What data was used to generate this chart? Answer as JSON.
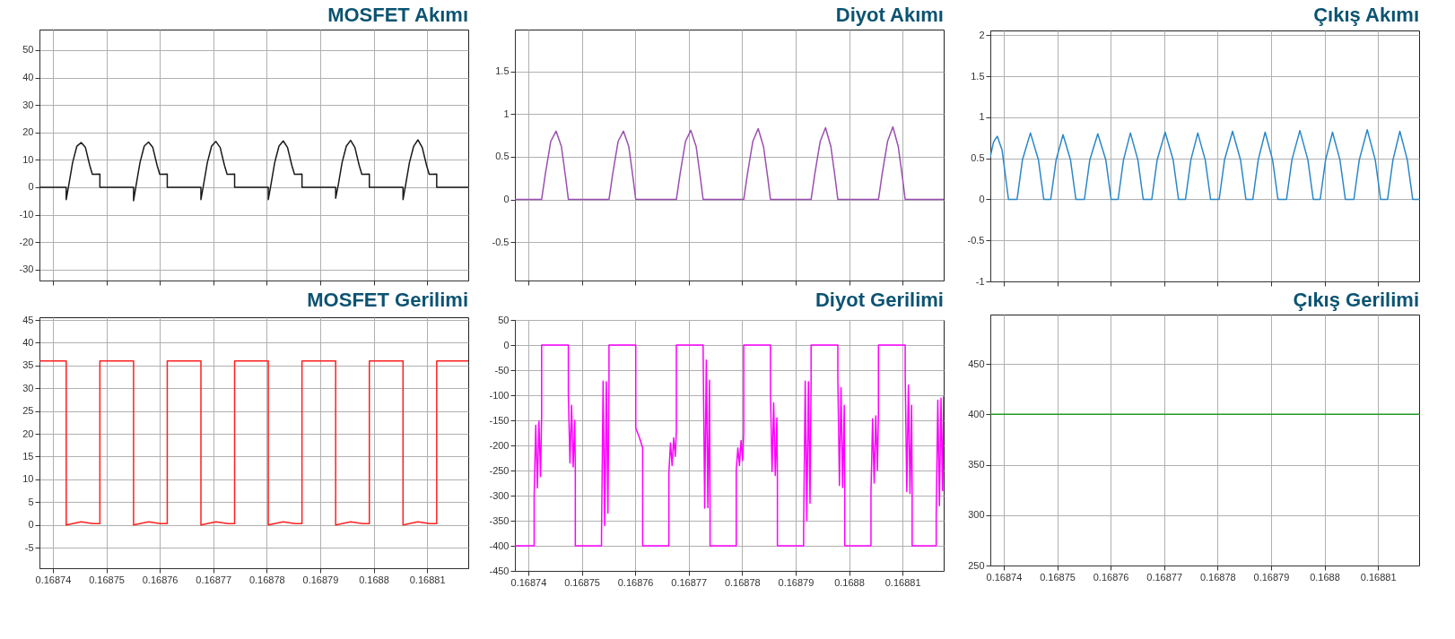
{
  "chart_data": [
    {
      "type": "line",
      "title": "MOSFET Akımı",
      "xlim": [
        0.1687375,
        0.1688177
      ],
      "xticks": [
        0.16874,
        0.16875,
        0.16876,
        0.16877,
        0.16878,
        0.16879,
        0.1688,
        0.16881
      ],
      "ylim": [
        -34,
        57.5
      ],
      "yticks": [
        -30,
        -20,
        -10,
        0,
        10,
        20,
        30,
        40,
        50
      ],
      "grid": true,
      "tick_labels": "y",
      "x": [
        0.1687375,
        0.1687425,
        0.1687425,
        0.168743,
        0.1687437,
        0.1687445,
        0.1687453,
        0.1687461,
        0.1687469,
        0.1687474,
        0.1687488,
        0.1687488,
        0.1687551,
        0.1687551,
        0.1687556,
        0.1687563,
        0.1687571,
        0.1687579,
        0.1687587,
        0.1687595,
        0.16876,
        0.1687614,
        0.1687614,
        0.1687677,
        0.1687677,
        0.1687682,
        0.1687689,
        0.1687697,
        0.1687705,
        0.1687713,
        0.1687721,
        0.1687726,
        0.168774,
        0.168774,
        0.1687803,
        0.1687803,
        0.1687808,
        0.1687815,
        0.1687823,
        0.1687831,
        0.1687839,
        0.1687847,
        0.1687852,
        0.1687866,
        0.1687866,
        0.1687929,
        0.1687929,
        0.1687934,
        0.1687941,
        0.1687949,
        0.1687957,
        0.1687965,
        0.1687973,
        0.1687978,
        0.1687992,
        0.1687992,
        0.1688055,
        0.1688055,
        0.168806,
        0.1688067,
        0.1688075,
        0.1688083,
        0.1688091,
        0.1688099,
        0.1688104,
        0.1688118,
        0.1688118,
        0.1688177
      ],
      "series": [
        {
          "color": "#1a1a1a",
          "values": [
            0,
            0,
            -4.5,
            1,
            9,
            15,
            16.3,
            14.5,
            8,
            4.7,
            4.8,
            0,
            0,
            -4.9,
            1,
            9,
            15,
            16.5,
            14.5,
            8,
            4.7,
            4.8,
            0,
            0,
            -4.5,
            1,
            9,
            15,
            16.7,
            14.5,
            8,
            4.7,
            4.8,
            0,
            0,
            -4.5,
            1,
            9,
            15,
            16.9,
            14.5,
            8,
            4.7,
            4.8,
            0,
            0,
            -4,
            1,
            9,
            15,
            17.1,
            14.5,
            8,
            4.7,
            4.8,
            0,
            0,
            -4.5,
            1,
            9,
            15,
            17.3,
            14.5,
            8,
            4.7,
            4.8,
            0,
            0
          ]
        }
      ]
    },
    {
      "type": "line",
      "title": "Diyot Akımı",
      "xlim": [
        0.1687375,
        0.1688177
      ],
      "xticks": [
        0.16874,
        0.16875,
        0.16876,
        0.16877,
        0.16878,
        0.16879,
        0.1688,
        0.16881
      ],
      "ylim": [
        -0.95,
        1.99
      ],
      "yticks": [
        -0.5,
        0,
        0.5,
        1,
        1.5
      ],
      "grid": true,
      "tick_labels": "y",
      "x": [
        0.1687375,
        0.1687425,
        0.1687432,
        0.1687442,
        0.1687452,
        0.1687462,
        0.168747,
        0.1687475,
        0.1687551,
        0.1687558,
        0.1687568,
        0.1687578,
        0.1687588,
        0.1687596,
        0.1687601,
        0.1687677,
        0.1687684,
        0.1687694,
        0.1687704,
        0.1687714,
        0.1687722,
        0.1687727,
        0.1687803,
        0.168781,
        0.168782,
        0.168783,
        0.168784,
        0.1687848,
        0.1687853,
        0.1687929,
        0.1687936,
        0.1687946,
        0.1687956,
        0.1687966,
        0.1687974,
        0.1687979,
        0.1688055,
        0.1688062,
        0.1688072,
        0.1688082,
        0.1688092,
        0.16881,
        0.1688105,
        0.1688177
      ],
      "series": [
        {
          "color": "#9b4fb0",
          "values": [
            0,
            0,
            0.3,
            0.68,
            0.8,
            0.62,
            0.25,
            0,
            0,
            0.3,
            0.68,
            0.8,
            0.62,
            0.25,
            0,
            0,
            0.3,
            0.68,
            0.81,
            0.62,
            0.25,
            0,
            0,
            0.3,
            0.68,
            0.83,
            0.62,
            0.25,
            0,
            0,
            0.3,
            0.68,
            0.84,
            0.62,
            0.25,
            0,
            0,
            0.3,
            0.68,
            0.85,
            0.62,
            0.25,
            0,
            0
          ]
        }
      ]
    },
    {
      "type": "line",
      "title": "Çıkış Akımı",
      "xlim": [
        0.1687375,
        0.1688177
      ],
      "xticks": [
        0.16874,
        0.16875,
        0.16876,
        0.16877,
        0.16878,
        0.16879,
        0.1688,
        0.16881
      ],
      "ylim": [
        -1,
        2.06
      ],
      "yticks": [
        -1,
        -0.5,
        0,
        0.5,
        1,
        1.5,
        2
      ],
      "grid": true,
      "tick_labels": "y",
      "x": [
        0.1687375,
        0.1687381,
        0.1687388,
        0.1687397,
        0.1687409,
        0.1687425,
        0.1687435,
        0.168745,
        0.1687465,
        0.1687475,
        0.1687488,
        0.1687498,
        0.1687511,
        0.1687525,
        0.1687535,
        0.1687551,
        0.1687561,
        0.1687576,
        0.1687591,
        0.1687601,
        0.1687614,
        0.1687624,
        0.1687637,
        0.1687651,
        0.1687661,
        0.1687677,
        0.1687687,
        0.1687702,
        0.1687717,
        0.1687727,
        0.168774,
        0.168775,
        0.1687763,
        0.1687777,
        0.1687787,
        0.1687803,
        0.1687813,
        0.1687828,
        0.1687843,
        0.1687853,
        0.1687866,
        0.1687876,
        0.1687889,
        0.1687903,
        0.1687913,
        0.1687929,
        0.1687939,
        0.1687954,
        0.1687969,
        0.1687979,
        0.1687992,
        0.1688002,
        0.1688015,
        0.1688029,
        0.1688039,
        0.1688055,
        0.1688065,
        0.168808,
        0.1688095,
        0.1688105,
        0.1688118,
        0.1688128,
        0.1688141,
        0.1688155,
        0.1688165,
        0.1688177
      ],
      "series": [
        {
          "color": "#2a87c8",
          "values": [
            0.52,
            0.7,
            0.77,
            0.6,
            0,
            0,
            0.48,
            0.81,
            0.48,
            0,
            0,
            0.48,
            0.79,
            0.48,
            0,
            0,
            0.48,
            0.8,
            0.48,
            0,
            0,
            0.48,
            0.81,
            0.48,
            0,
            0,
            0.48,
            0.82,
            0.48,
            0,
            0,
            0.48,
            0.81,
            0.48,
            0,
            0,
            0.48,
            0.83,
            0.48,
            0,
            0,
            0.48,
            0.82,
            0.48,
            0,
            0,
            0.48,
            0.84,
            0.48,
            0,
            0,
            0.48,
            0.82,
            0.48,
            0,
            0,
            0.48,
            0.85,
            0.48,
            0,
            0,
            0.48,
            0.83,
            0.48,
            0,
            0
          ]
        }
      ]
    },
    {
      "type": "line",
      "title": "MOSFET Gerilimi",
      "xlim": [
        0.1687375,
        0.1688177
      ],
      "xticks": [
        0.16874,
        0.16875,
        0.16876,
        0.16877,
        0.16878,
        0.16879,
        0.1688,
        0.16881
      ],
      "ylim": [
        -9.5,
        45.6
      ],
      "yticks": [
        -5,
        0,
        5,
        10,
        15,
        20,
        25,
        30,
        35,
        40,
        45
      ],
      "grid": true,
      "x": [
        0.1687375,
        0.1687425,
        0.1687425,
        0.1687453,
        0.1687475,
        0.1687488,
        0.1687488,
        0.1687551,
        0.1687551,
        0.1687579,
        0.1687601,
        0.1687614,
        0.1687614,
        0.1687677,
        0.1687677,
        0.1687705,
        0.1687727,
        0.168774,
        0.168774,
        0.1687803,
        0.1687803,
        0.1687831,
        0.1687853,
        0.1687866,
        0.1687866,
        0.1687929,
        0.1687929,
        0.1687957,
        0.1687979,
        0.1687992,
        0.1687992,
        0.1688055,
        0.1688055,
        0.1688083,
        0.1688105,
        0.1688118,
        0.1688118,
        0.1688177
      ],
      "series": [
        {
          "color": "#ff2020",
          "values": [
            36,
            36,
            0,
            0.7,
            0.3,
            0.3,
            36,
            36,
            0,
            0.7,
            0.3,
            0.3,
            36,
            36,
            0,
            0.7,
            0.3,
            0.3,
            36,
            36,
            0,
            0.7,
            0.3,
            0.3,
            36,
            36,
            0,
            0.7,
            0.3,
            0.3,
            36,
            36,
            0,
            0.7,
            0.3,
            0.3,
            36,
            36
          ]
        }
      ]
    },
    {
      "type": "line",
      "title": "Diyot Gerilimi",
      "xlim": [
        0.1687375,
        0.1688177
      ],
      "xticks": [
        0.16874,
        0.16875,
        0.16876,
        0.16877,
        0.16878,
        0.16879,
        0.1688,
        0.16881
      ],
      "ylim": [
        -450,
        50
      ],
      "yticks": [
        -450,
        -400,
        -350,
        -300,
        -250,
        -200,
        -150,
        -100,
        -50,
        0,
        50
      ],
      "grid": true,
      "x": [
        0.1687375,
        0.1687411,
        0.1687411,
        0.1687414,
        0.1687417,
        0.168742,
        0.1687423,
        0.1687425,
        0.1687425,
        0.1687475,
        0.1687475,
        0.1687478,
        0.1687481,
        0.1687484,
        0.1687487,
        0.1687488,
        0.1687488,
        0.1687537,
        0.1687537,
        0.168754,
        0.1687543,
        0.1687546,
        0.1687549,
        0.1687551,
        0.1687551,
        0.1687601,
        0.1687601,
        0.1687608,
        0.1687614,
        0.1687614,
        0.1687663,
        0.1687663,
        0.1687666,
        0.1687669,
        0.1687672,
        0.1687675,
        0.1687677,
        0.1687677,
        0.1687727,
        0.1687727,
        0.168773,
        0.1687733,
        0.1687736,
        0.1687739,
        0.168774,
        0.168774,
        0.1687789,
        0.1687789,
        0.1687792,
        0.1687795,
        0.1687798,
        0.1687801,
        0.1687803,
        0.1687803,
        0.1687853,
        0.1687853,
        0.1687856,
        0.1687859,
        0.1687862,
        0.1687865,
        0.1687866,
        0.1687866,
        0.1687915,
        0.1687915,
        0.1687918,
        0.1687921,
        0.1687924,
        0.1687927,
        0.1687929,
        0.1687929,
        0.1687979,
        0.1687979,
        0.1687982,
        0.1687985,
        0.1687988,
        0.1687991,
        0.1687992,
        0.1687992,
        0.1688041,
        0.1688041,
        0.1688044,
        0.1688047,
        0.168805,
        0.1688053,
        0.1688055,
        0.1688055,
        0.1688105,
        0.1688105,
        0.1688108,
        0.1688111,
        0.1688114,
        0.1688117,
        0.1688118,
        0.1688118,
        0.1688163,
        0.1688163,
        0.1688166,
        0.1688169,
        0.1688172,
        0.1688175,
        0.1688177
      ],
      "series": [
        {
          "color": "#ff00ff",
          "values": [
            -400,
            -400,
            -300,
            -160,
            -285,
            -152,
            -262,
            -140,
            0,
            0,
            -100,
            -235,
            -120,
            -243,
            -150,
            -250,
            -400,
            -400,
            -380,
            -72,
            -360,
            -73,
            -335,
            -75,
            0,
            0,
            -165,
            -185,
            -205,
            -400,
            -400,
            -255,
            -195,
            -240,
            -185,
            -222,
            -170,
            0,
            0,
            -5,
            -325,
            -30,
            -324,
            -70,
            -320,
            -400,
            -400,
            -250,
            -205,
            -240,
            -190,
            -230,
            -175,
            0,
            0,
            -95,
            -252,
            -115,
            -260,
            -145,
            -270,
            -400,
            -400,
            -370,
            -72,
            -350,
            -73,
            -315,
            -75,
            0,
            0,
            -65,
            -280,
            -85,
            -284,
            -120,
            -288,
            -400,
            -400,
            -295,
            -147,
            -275,
            -141,
            -250,
            -135,
            0,
            0,
            -60,
            -292,
            -80,
            -296,
            -120,
            -300,
            -400,
            -400,
            -340,
            -110,
            -320,
            -106,
            -290,
            -103
          ]
        }
      ]
    },
    {
      "type": "line",
      "title": "Çıkış Gerilimi",
      "xlim": [
        0.1687375,
        0.1688177
      ],
      "xticks": [
        0.16874,
        0.16875,
        0.16876,
        0.16877,
        0.16878,
        0.16879,
        0.1688,
        0.16881
      ],
      "ylim": [
        250,
        499
      ],
      "yticks": [
        250,
        300,
        350,
        400,
        450
      ],
      "grid": true,
      "x": [
        0.1687375,
        0.1688177
      ],
      "series": [
        {
          "color": "#229922",
          "values": [
            400,
            400
          ]
        }
      ]
    }
  ]
}
